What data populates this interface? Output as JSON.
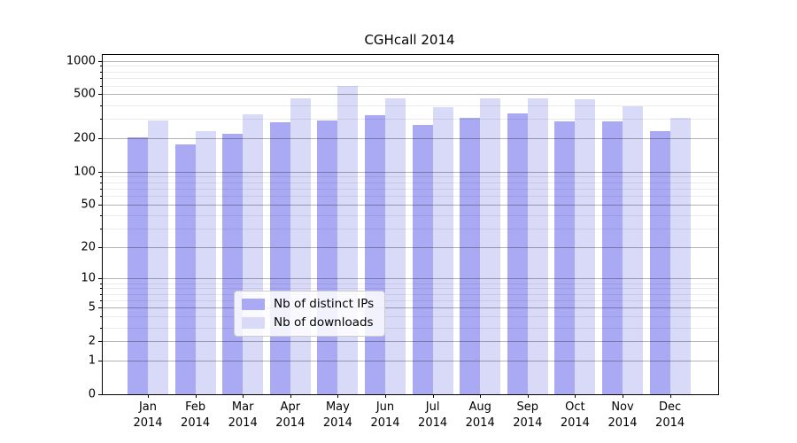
{
  "title": "CGHcall 2014",
  "chart_data": {
    "type": "bar",
    "title": "CGHcall 2014",
    "yscale": "log1p",
    "ylim": [
      0,
      1130
    ],
    "grid": true,
    "legend_position": "bottom-center",
    "categories": [
      "Jan",
      "Feb",
      "Mar",
      "Apr",
      "May",
      "Jun",
      "Jul",
      "Aug",
      "Sep",
      "Oct",
      "Nov",
      "Dec"
    ],
    "x_year_label": "2014",
    "y_major_ticks": [
      0,
      1,
      2,
      5,
      10,
      20,
      50,
      100,
      200,
      500,
      1000
    ],
    "y_minor_ticks": [
      3,
      4,
      6,
      7,
      8,
      9,
      30,
      40,
      60,
      70,
      80,
      90,
      300,
      400,
      600,
      700,
      800,
      900
    ],
    "series": [
      {
        "name": "Nb of distinct IPs",
        "color": "#a9a9f4",
        "values": [
          205,
          178,
          220,
          280,
          292,
          326,
          263,
          305,
          336,
          285,
          285,
          232
        ]
      },
      {
        "name": "Nb of downloads",
        "color": "#d9d9f8",
        "values": [
          292,
          232,
          333,
          460,
          590,
          460,
          385,
          460,
          462,
          452,
          390,
          307
        ]
      }
    ]
  },
  "colors": {
    "grid_major": "rgba(0,0,0,0.30)",
    "grid_minor": "rgba(0,0,0,0.08)",
    "axis": "#000000",
    "legend_border": "#cccccc"
  }
}
